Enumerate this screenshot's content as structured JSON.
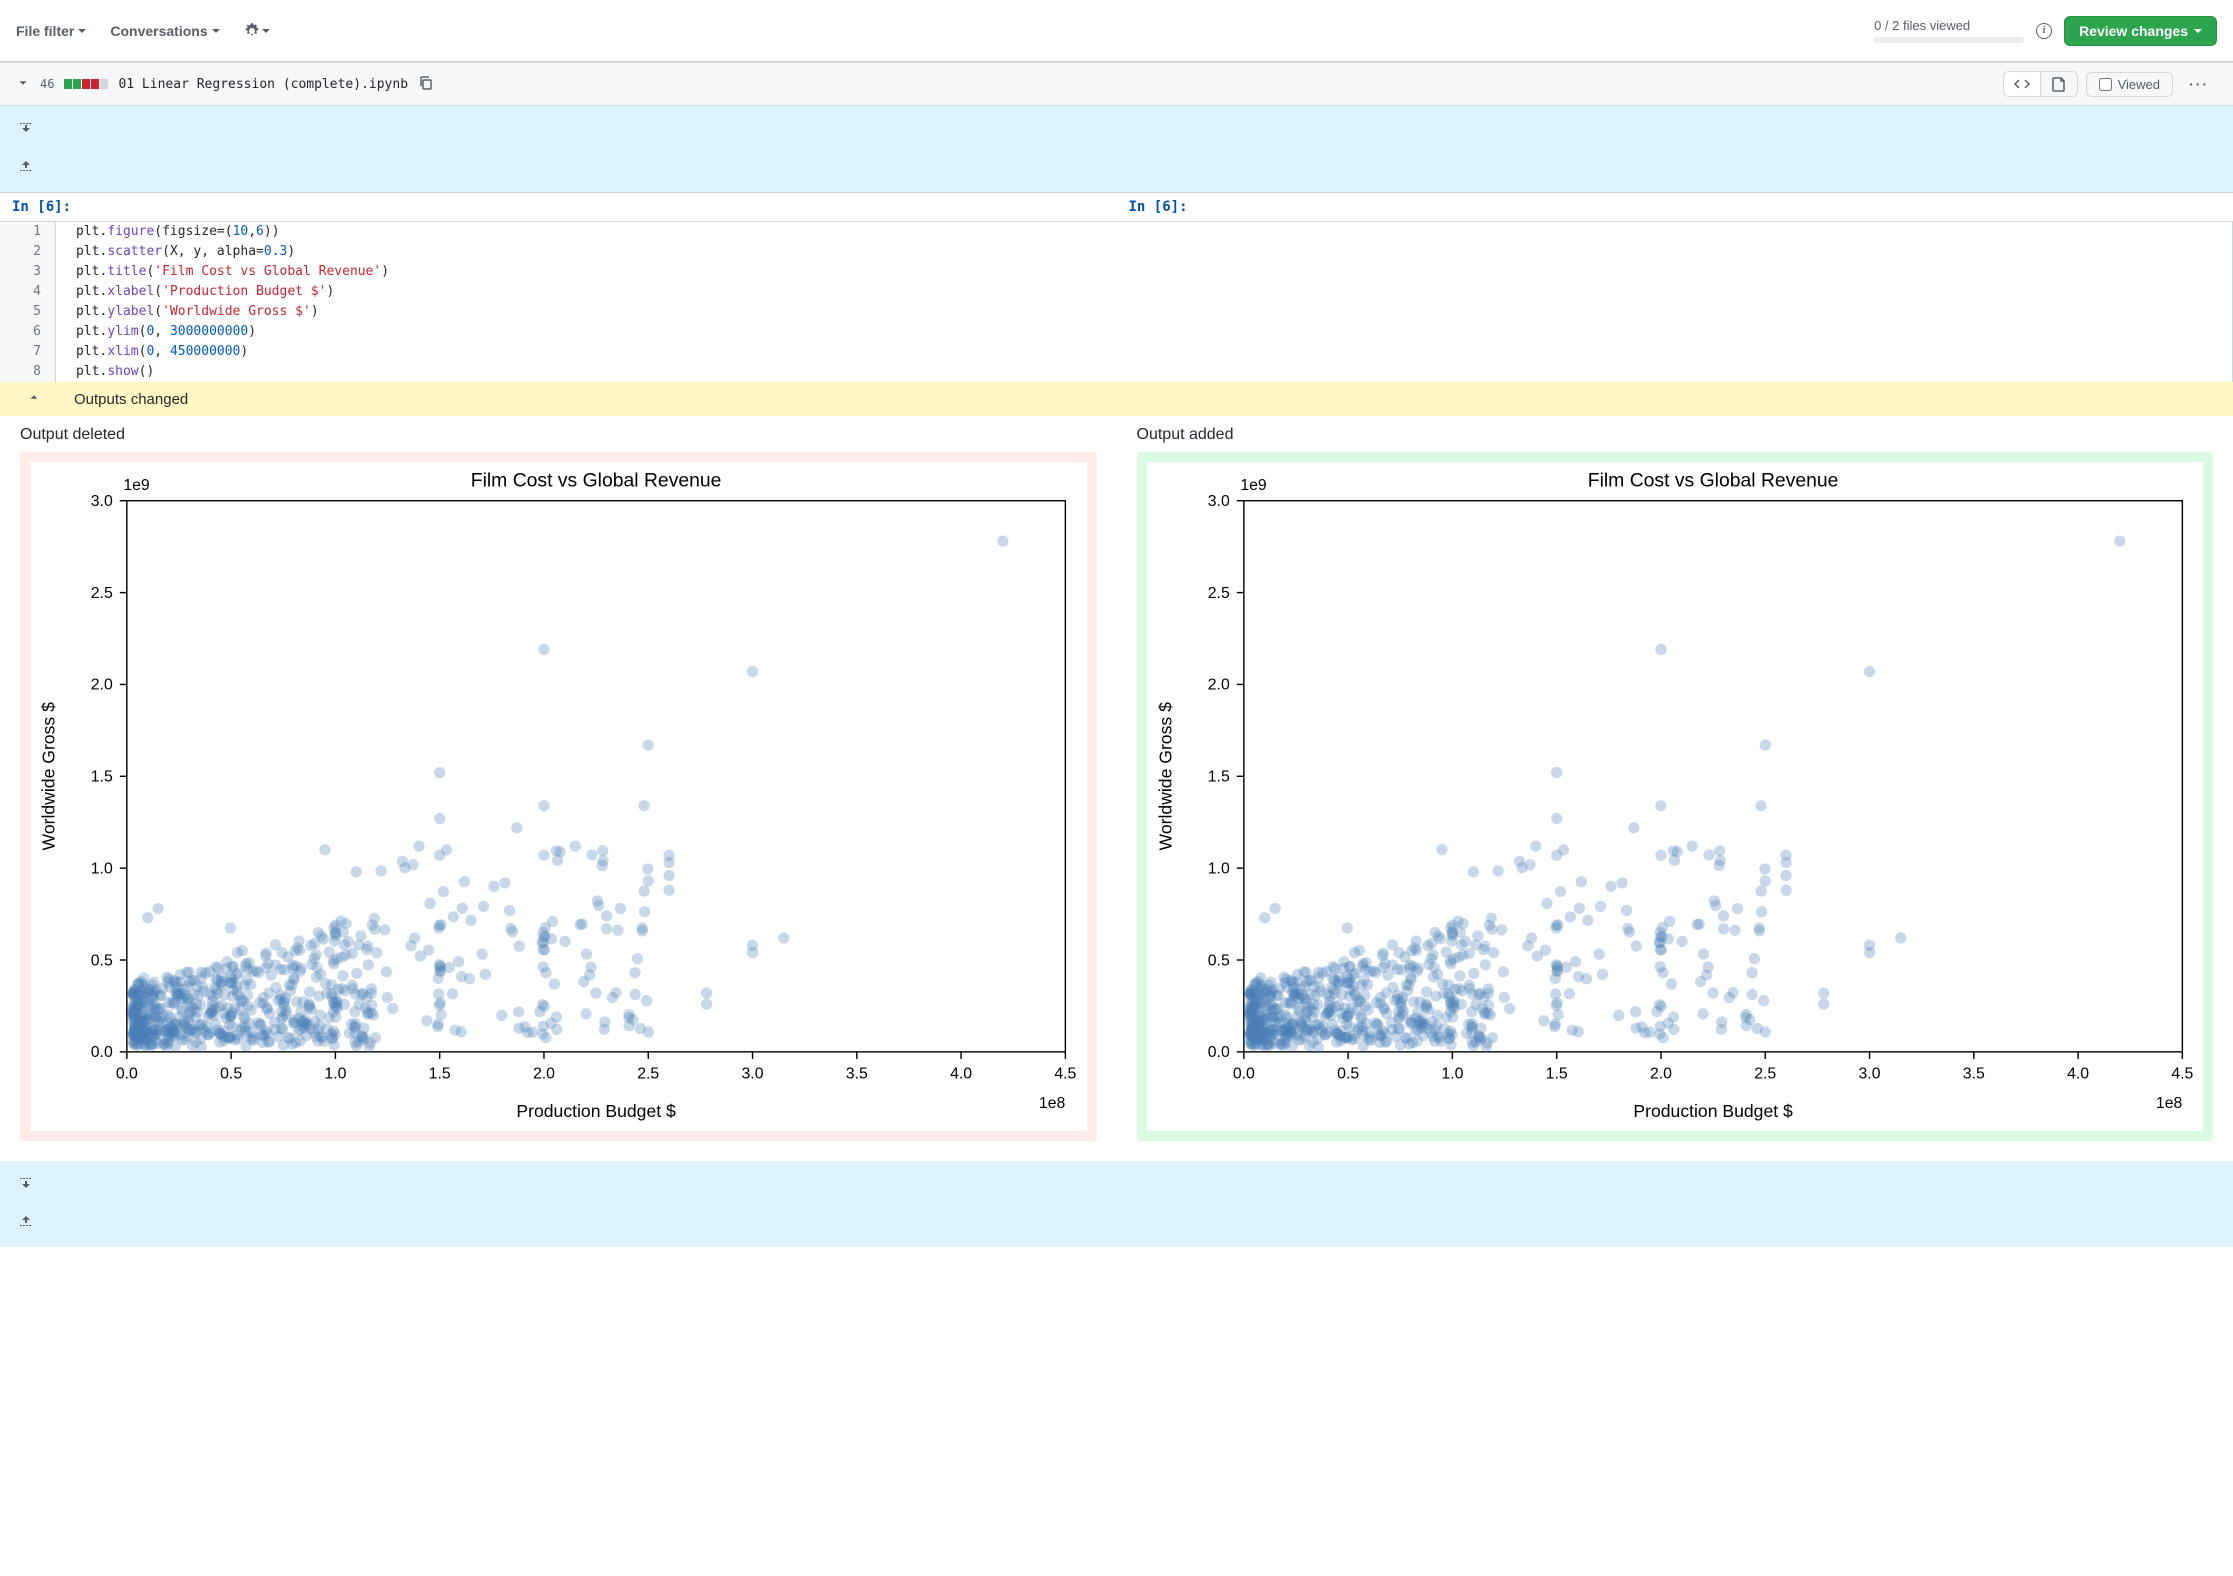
{
  "toolbar": {
    "file_filter": "File filter",
    "conversations": "Conversations",
    "files_viewed": "0 / 2 files viewed",
    "review_changes": "Review changes"
  },
  "file": {
    "diff_count": "46",
    "diff_blocks": [
      "#2da44e",
      "#2da44e",
      "#cf222e",
      "#cf222e",
      "#d0d7de"
    ],
    "name": "01 Linear Regression (complete).ipynb",
    "viewed_label": "Viewed"
  },
  "cell": {
    "left_label": "In [6]:",
    "right_label": "In [6]:"
  },
  "code": [
    {
      "n": "1",
      "tokens": [
        "plt",
        ".",
        "figure",
        "(",
        "figsize",
        "=",
        "(",
        "10",
        ",",
        "6",
        ")",
        ")"
      ],
      "types": [
        "id",
        "punc",
        "fn",
        "punc",
        "id",
        "punc",
        "punc",
        "num",
        "punc",
        "num",
        "punc",
        "punc"
      ]
    },
    {
      "n": "2",
      "tokens": [
        "plt",
        ".",
        "scatter",
        "(",
        "X",
        ", ",
        "y",
        ", ",
        "alpha",
        "=",
        "0.3",
        ")"
      ],
      "types": [
        "id",
        "punc",
        "fn",
        "punc",
        "id",
        "punc",
        "id",
        "punc",
        "id",
        "punc",
        "num",
        "punc"
      ]
    },
    {
      "n": "3",
      "tokens": [
        "plt",
        ".",
        "title",
        "(",
        "'Film Cost vs Global Revenue'",
        ")"
      ],
      "types": [
        "id",
        "punc",
        "fn",
        "punc",
        "str",
        "punc"
      ]
    },
    {
      "n": "4",
      "tokens": [
        "plt",
        ".",
        "xlabel",
        "(",
        "'Production Budget $'",
        ")"
      ],
      "types": [
        "id",
        "punc",
        "fn",
        "punc",
        "str",
        "punc"
      ]
    },
    {
      "n": "5",
      "tokens": [
        "plt",
        ".",
        "ylabel",
        "(",
        "'Worldwide Gross $'",
        ")"
      ],
      "types": [
        "id",
        "punc",
        "fn",
        "punc",
        "str",
        "punc"
      ]
    },
    {
      "n": "6",
      "tokens": [
        "plt",
        ".",
        "ylim",
        "(",
        "0",
        ", ",
        "3000000000",
        ")"
      ],
      "types": [
        "id",
        "punc",
        "fn",
        "punc",
        "num",
        "punc",
        "num",
        "punc"
      ]
    },
    {
      "n": "7",
      "tokens": [
        "plt",
        ".",
        "xlim",
        "(",
        "0",
        ", ",
        "450000000",
        ")"
      ],
      "types": [
        "id",
        "punc",
        "fn",
        "punc",
        "num",
        "punc",
        "num",
        "punc"
      ]
    },
    {
      "n": "8",
      "tokens": [
        "plt",
        ".",
        "show",
        "(",
        ")"
      ],
      "types": [
        "id",
        "punc",
        "fn",
        "punc",
        "punc"
      ]
    }
  ],
  "outputs_bar": "Outputs changed",
  "output_labels": {
    "deleted": "Output deleted",
    "added": "Output added"
  },
  "chart": {
    "title": "Film Cost vs Global Revenue",
    "xlabel": "Production Budget $",
    "ylabel": "Worldwide Gross $",
    "x_exp": "1e8",
    "y_exp": "1e9",
    "xlim": [
      0,
      4.5
    ],
    "ylim": [
      0,
      3.0
    ],
    "xticks": [
      0.0,
      0.5,
      1.0,
      1.5,
      2.0,
      2.5,
      3.0,
      3.5,
      4.0,
      4.5
    ],
    "yticks": [
      0.0,
      0.5,
      1.0,
      1.5,
      2.0,
      2.5,
      3.0
    ],
    "marker_color": "#4a7fb5",
    "marker_alpha": 0.3,
    "marker_radius": 3.2,
    "axis_color": "#000000",
    "background": "#ffffff",
    "label_fontsize": 10,
    "title_fontsize": 11,
    "tick_fontsize": 9,
    "dense_cluster": {
      "x_range": [
        0.03,
        1.2
      ],
      "y_range": [
        0.02,
        0.6
      ],
      "count": 550
    },
    "mid_cluster": {
      "x_range": [
        1.2,
        2.6
      ],
      "y_range": [
        0.1,
        1.1
      ],
      "count": 90
    },
    "outliers": [
      [
        4.2,
        2.78
      ],
      [
        3.0,
        2.07
      ],
      [
        2.0,
        2.19
      ],
      [
        2.5,
        1.67
      ],
      [
        2.48,
        1.34
      ],
      [
        2.0,
        1.34
      ],
      [
        2.15,
        1.12
      ],
      [
        2.0,
        1.07
      ],
      [
        2.6,
        1.07
      ],
      [
        2.6,
        0.96
      ],
      [
        2.6,
        0.88
      ],
      [
        2.6,
        1.03
      ],
      [
        1.5,
        1.52
      ],
      [
        1.5,
        1.27
      ],
      [
        1.87,
        1.22
      ],
      [
        1.4,
        1.12
      ],
      [
        1.5,
        1.07
      ],
      [
        2.5,
        0.93
      ],
      [
        2.3,
        0.67
      ],
      [
        2.3,
        0.74
      ],
      [
        2.78,
        0.32
      ],
      [
        2.78,
        0.26
      ],
      [
        3.0,
        0.58
      ],
      [
        3.0,
        0.54
      ],
      [
        3.15,
        0.62
      ],
      [
        0.95,
        1.1
      ],
      [
        1.1,
        0.98
      ],
      [
        0.15,
        0.78
      ],
      [
        0.1,
        0.73
      ]
    ]
  }
}
